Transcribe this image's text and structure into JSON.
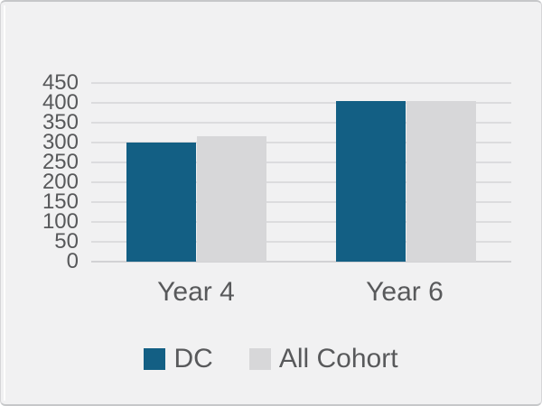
{
  "chart_data": {
    "type": "bar",
    "categories": [
      "Year 4",
      "Year 6"
    ],
    "series": [
      {
        "name": "DC",
        "color": "#135f84",
        "values": [
          299,
          405
        ]
      },
      {
        "name": "All Cohort",
        "color": "#d7d7d9",
        "values": [
          315,
          404
        ]
      }
    ],
    "title": "",
    "xlabel": "",
    "ylabel": "",
    "ylim": [
      0,
      450
    ],
    "yticks": [
      0,
      50,
      100,
      150,
      200,
      250,
      300,
      350,
      400,
      450
    ],
    "grid": true,
    "legend_position": "bottom"
  },
  "colors": {
    "background": "#f1f1f2",
    "gridline": "#dcdcde",
    "baseline": "#d2d2d4",
    "text": "#58595b"
  }
}
